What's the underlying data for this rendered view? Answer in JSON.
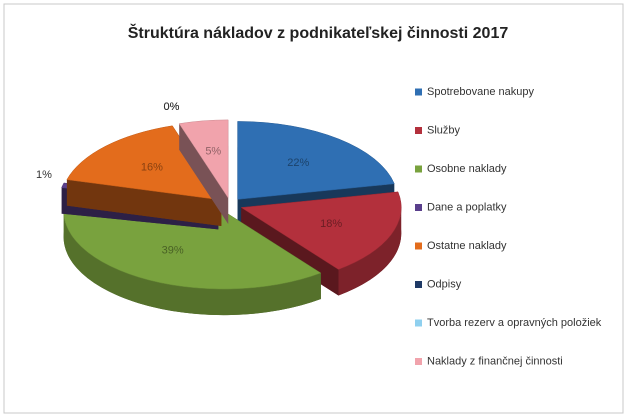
{
  "chart_data": {
    "type": "pie",
    "title": "Štruktúra nákladov z podnikateľskej činnosti 2017",
    "categories": [
      "Spotrebovane nakupy",
      "Služby",
      "Osobne naklady",
      "Dane a poplatky",
      "Ostatne naklady",
      "Odpisy",
      "Tvorba rezerv a opravných položiek",
      "Naklady z finančnej činnosti"
    ],
    "values": [
      22,
      18,
      39,
      1,
      16,
      0,
      0,
      5
    ],
    "value_labels": [
      "22%",
      "18%",
      "39%",
      "1%",
      "16%",
      "0%",
      "0%",
      "5%"
    ],
    "colors": [
      "#2f6fb3",
      "#b3303c",
      "#79a23e",
      "#5a3f8c",
      "#e36c1c",
      "#1f3a66",
      "#8fd0ef",
      "#f1a3ac"
    ],
    "legend": "right"
  }
}
